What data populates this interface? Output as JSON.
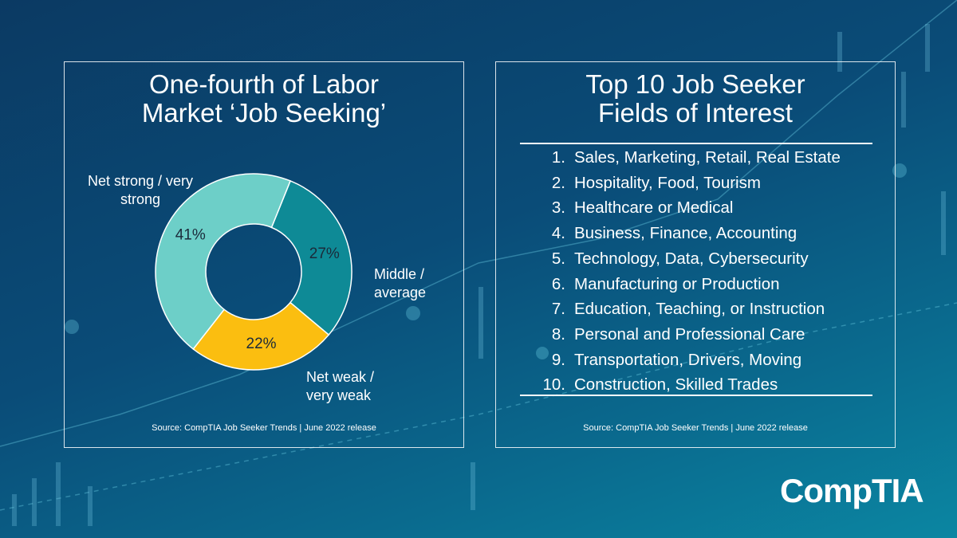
{
  "chart_data": {
    "type": "pie",
    "title": "One-fourth of Labor Market ‘Job Seeking’",
    "categories": [
      "Middle / average",
      "Net weak / very weak",
      "Net strong / very strong"
    ],
    "values": [
      27,
      22,
      41
    ],
    "value_labels": [
      "27%",
      "22%",
      "41%"
    ],
    "colors": [
      "#0e8a96",
      "#fbbe10",
      "#6dcfc8"
    ],
    "donut": true,
    "source": "Source: CompTIA Job Seeker Trends | June 2022 release"
  },
  "list_panel": {
    "title": "Top 10 Job Seeker Fields of Interest",
    "items": [
      {
        "number": "1.",
        "text": "Sales, Marketing, Retail, Real Estate"
      },
      {
        "number": "2.",
        "text": "Hospitality, Food, Tourism"
      },
      {
        "number": "3.",
        "text": "Healthcare or Medical"
      },
      {
        "number": "4.",
        "text": "Business, Finance, Accounting"
      },
      {
        "number": "5.",
        "text": "Technology, Data, Cybersecurity"
      },
      {
        "number": "6.",
        "text": "Manufacturing or Production"
      },
      {
        "number": "7.",
        "text": "Education, Teaching, or Instruction"
      },
      {
        "number": "8.",
        "text": "Personal and Professional Care"
      },
      {
        "number": "9.",
        "text": "Transportation, Drivers, Moving"
      },
      {
        "number": "10.",
        "text": "Construction, Skilled Trades"
      }
    ],
    "source": "Source: CompTIA Job Seeker Trends | June 2022 release"
  },
  "logo": "CompTIA"
}
